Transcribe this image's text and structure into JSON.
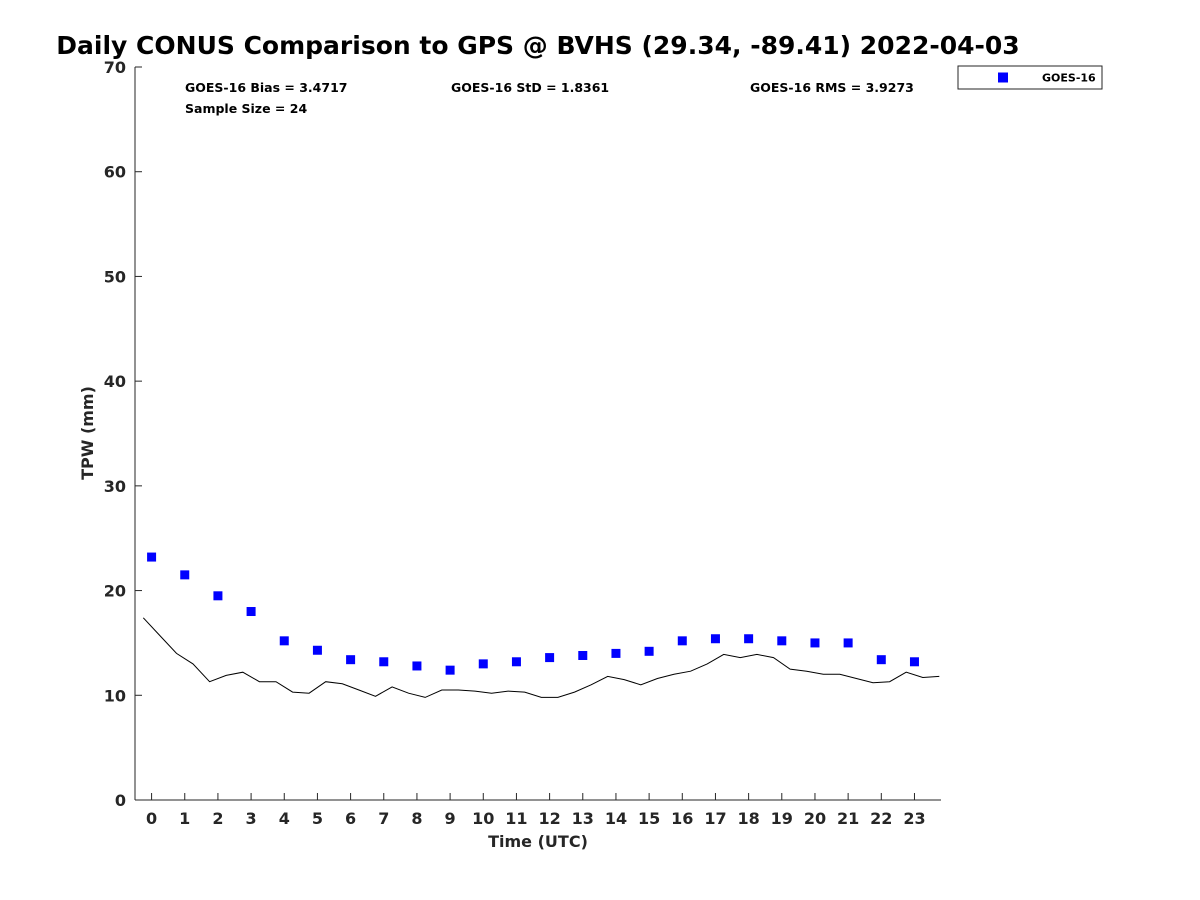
{
  "chart_data": {
    "type": "scatter",
    "title": "Daily CONUS Comparison to GPS @ BVHS (29.34, -89.41) 2022-04-03",
    "xlabel": "Time (UTC)",
    "ylabel": "TPW (mm)",
    "xlim": [
      -0.5,
      23.8
    ],
    "ylim": [
      0,
      70
    ],
    "xticks": [
      "0",
      "1",
      "2",
      "3",
      "4",
      "5",
      "6",
      "7",
      "8",
      "9",
      "10",
      "11",
      "12",
      "13",
      "14",
      "15",
      "16",
      "17",
      "18",
      "19",
      "20",
      "21",
      "22",
      "23"
    ],
    "yticks": [
      "0",
      "10",
      "20",
      "30",
      "40",
      "50",
      "60",
      "70"
    ],
    "grid": false,
    "legend_position": "top-right outside",
    "stats": {
      "bias": "GOES-16 Bias = 3.4717",
      "std": "GOES-16 StD = 1.8361",
      "rms": "GOES-16 RMS = 3.9273",
      "sample": "Sample Size = 24"
    },
    "series": [
      {
        "name": "GOES-16",
        "kind": "scatter",
        "marker": "square",
        "color": "#0000ff",
        "x": [
          0,
          1,
          2,
          3,
          4,
          5,
          6,
          7,
          8,
          9,
          10,
          11,
          12,
          13,
          14,
          15,
          16,
          17,
          18,
          19,
          20,
          21,
          22,
          23
        ],
        "y": [
          23.2,
          21.5,
          19.5,
          18.0,
          15.2,
          14.3,
          13.4,
          13.2,
          12.8,
          12.4,
          13.0,
          13.2,
          13.6,
          13.8,
          14.0,
          14.2,
          15.2,
          15.4,
          15.4,
          15.2,
          15.0,
          15.0,
          13.4,
          13.2
        ]
      },
      {
        "kind": "line",
        "color": "#000000",
        "x": [
          -0.25,
          0.25,
          0.75,
          1.25,
          1.75,
          2.25,
          2.75,
          3.25,
          3.75,
          4.25,
          4.75,
          5.25,
          5.75,
          6.25,
          6.75,
          7.25,
          7.75,
          8.25,
          8.75,
          9.25,
          9.75,
          10.25,
          10.75,
          11.25,
          11.75,
          12.25,
          12.75,
          13.25,
          13.75,
          14.25,
          14.75,
          15.25,
          15.75,
          16.25,
          16.75,
          17.25,
          17.75,
          18.25,
          18.75,
          19.25,
          19.75,
          20.25,
          20.75,
          21.25,
          21.75,
          22.25,
          22.75,
          23.25,
          23.75
        ],
        "y": [
          17.4,
          15.7,
          14.0,
          13.0,
          11.3,
          11.9,
          12.2,
          11.3,
          11.3,
          10.3,
          10.2,
          11.3,
          11.1,
          10.5,
          9.9,
          10.8,
          10.2,
          9.8,
          10.5,
          10.5,
          10.4,
          10.2,
          10.4,
          10.3,
          9.8,
          9.8,
          10.3,
          11.0,
          11.8,
          11.5,
          11.0,
          11.6,
          12.0,
          12.3,
          13.0,
          13.9,
          13.6,
          13.9,
          13.6,
          12.5,
          12.3,
          12.0,
          12.0,
          11.6,
          11.2,
          11.3,
          12.2,
          11.7,
          11.8
        ]
      }
    ]
  }
}
